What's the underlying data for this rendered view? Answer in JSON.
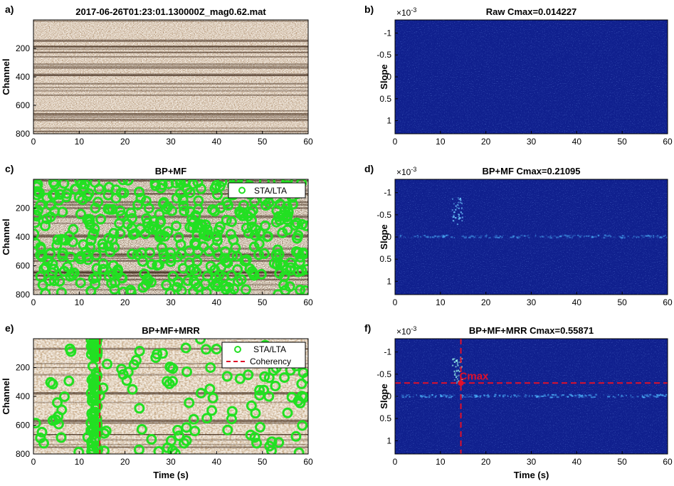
{
  "figure": {
    "panels": [
      {
        "label": "a)",
        "title": "2017-06-26T01:23:01.130000Z_mag0.62.mat"
      },
      {
        "label": "b)",
        "title": "Raw Cmax=0.014227",
        "exponent_base": "×10",
        "exponent_power": "-3"
      },
      {
        "label": "c)",
        "title": "BP+MF"
      },
      {
        "label": "d)",
        "title": "BP+MF Cmax=0.21095",
        "exponent_base": "×10",
        "exponent_power": "-3"
      },
      {
        "label": "e)",
        "title": "BP+MF+MRR"
      },
      {
        "label": "f)",
        "title": "BP+MF+MRR Cmax=0.55871",
        "exponent_base": "×10",
        "exponent_power": "-3"
      }
    ],
    "xlabel": "Time (s)",
    "ylabel_left": "Channel",
    "ylabel_right": "Slope",
    "x_ticks": [
      "0",
      "10",
      "20",
      "30",
      "40",
      "50",
      "60"
    ],
    "channel_ticks": [
      "200",
      "400",
      "600",
      "800"
    ],
    "slope_ticks": [
      "-1",
      "-0.5",
      "0",
      "0.5",
      "1"
    ],
    "legend_stalta": "STA/LTA",
    "legend_coherency": "Coherency",
    "cmax_label": "Cmax",
    "colors": {
      "stalta": "#22e022",
      "coherency": "#e0102a",
      "slowness_bg": "#10208e"
    }
  },
  "chart_data": [
    {
      "panel": "a",
      "type": "heatmap",
      "title": "2017-06-26T01:23:01.130000Z_mag0.62.mat",
      "ylabel": "Channel",
      "xlim": [
        0,
        60
      ],
      "ylim": [
        800,
        0
      ]
    },
    {
      "panel": "b",
      "type": "heatmap",
      "title": "Raw Cmax=0.014227",
      "ylabel": "Slope",
      "xlim": [
        0,
        60
      ],
      "ylim": [
        -0.0013,
        0.0013
      ],
      "cmax": 0.014227
    },
    {
      "panel": "c",
      "type": "heatmap",
      "title": "BP+MF",
      "ylabel": "Channel",
      "xlim": [
        0,
        60
      ],
      "ylim": [
        800,
        0
      ],
      "legend": [
        "STA/LTA"
      ]
    },
    {
      "panel": "d",
      "type": "heatmap",
      "title": "BP+MF Cmax=0.21095",
      "ylabel": "Slope",
      "xlim": [
        0,
        60
      ],
      "ylim": [
        -0.0013,
        0.0013
      ],
      "cmax": 0.21095
    },
    {
      "panel": "e",
      "type": "heatmap",
      "title": "BP+MF+MRR",
      "xlabel": "Time (s)",
      "ylabel": "Channel",
      "xlim": [
        0,
        60
      ],
      "ylim": [
        800,
        0
      ],
      "legend": [
        "STA/LTA",
        "Coherency"
      ],
      "coherency_time": 14.5
    },
    {
      "panel": "f",
      "type": "heatmap",
      "title": "BP+MF+MRR Cmax=0.55871",
      "xlabel": "Time (s)",
      "ylabel": "Slope",
      "xlim": [
        0,
        60
      ],
      "ylim": [
        -0.0013,
        0.0013
      ],
      "cmax": 0.55871,
      "cmax_time": 14.5,
      "cmax_slope": -0.0003
    }
  ]
}
